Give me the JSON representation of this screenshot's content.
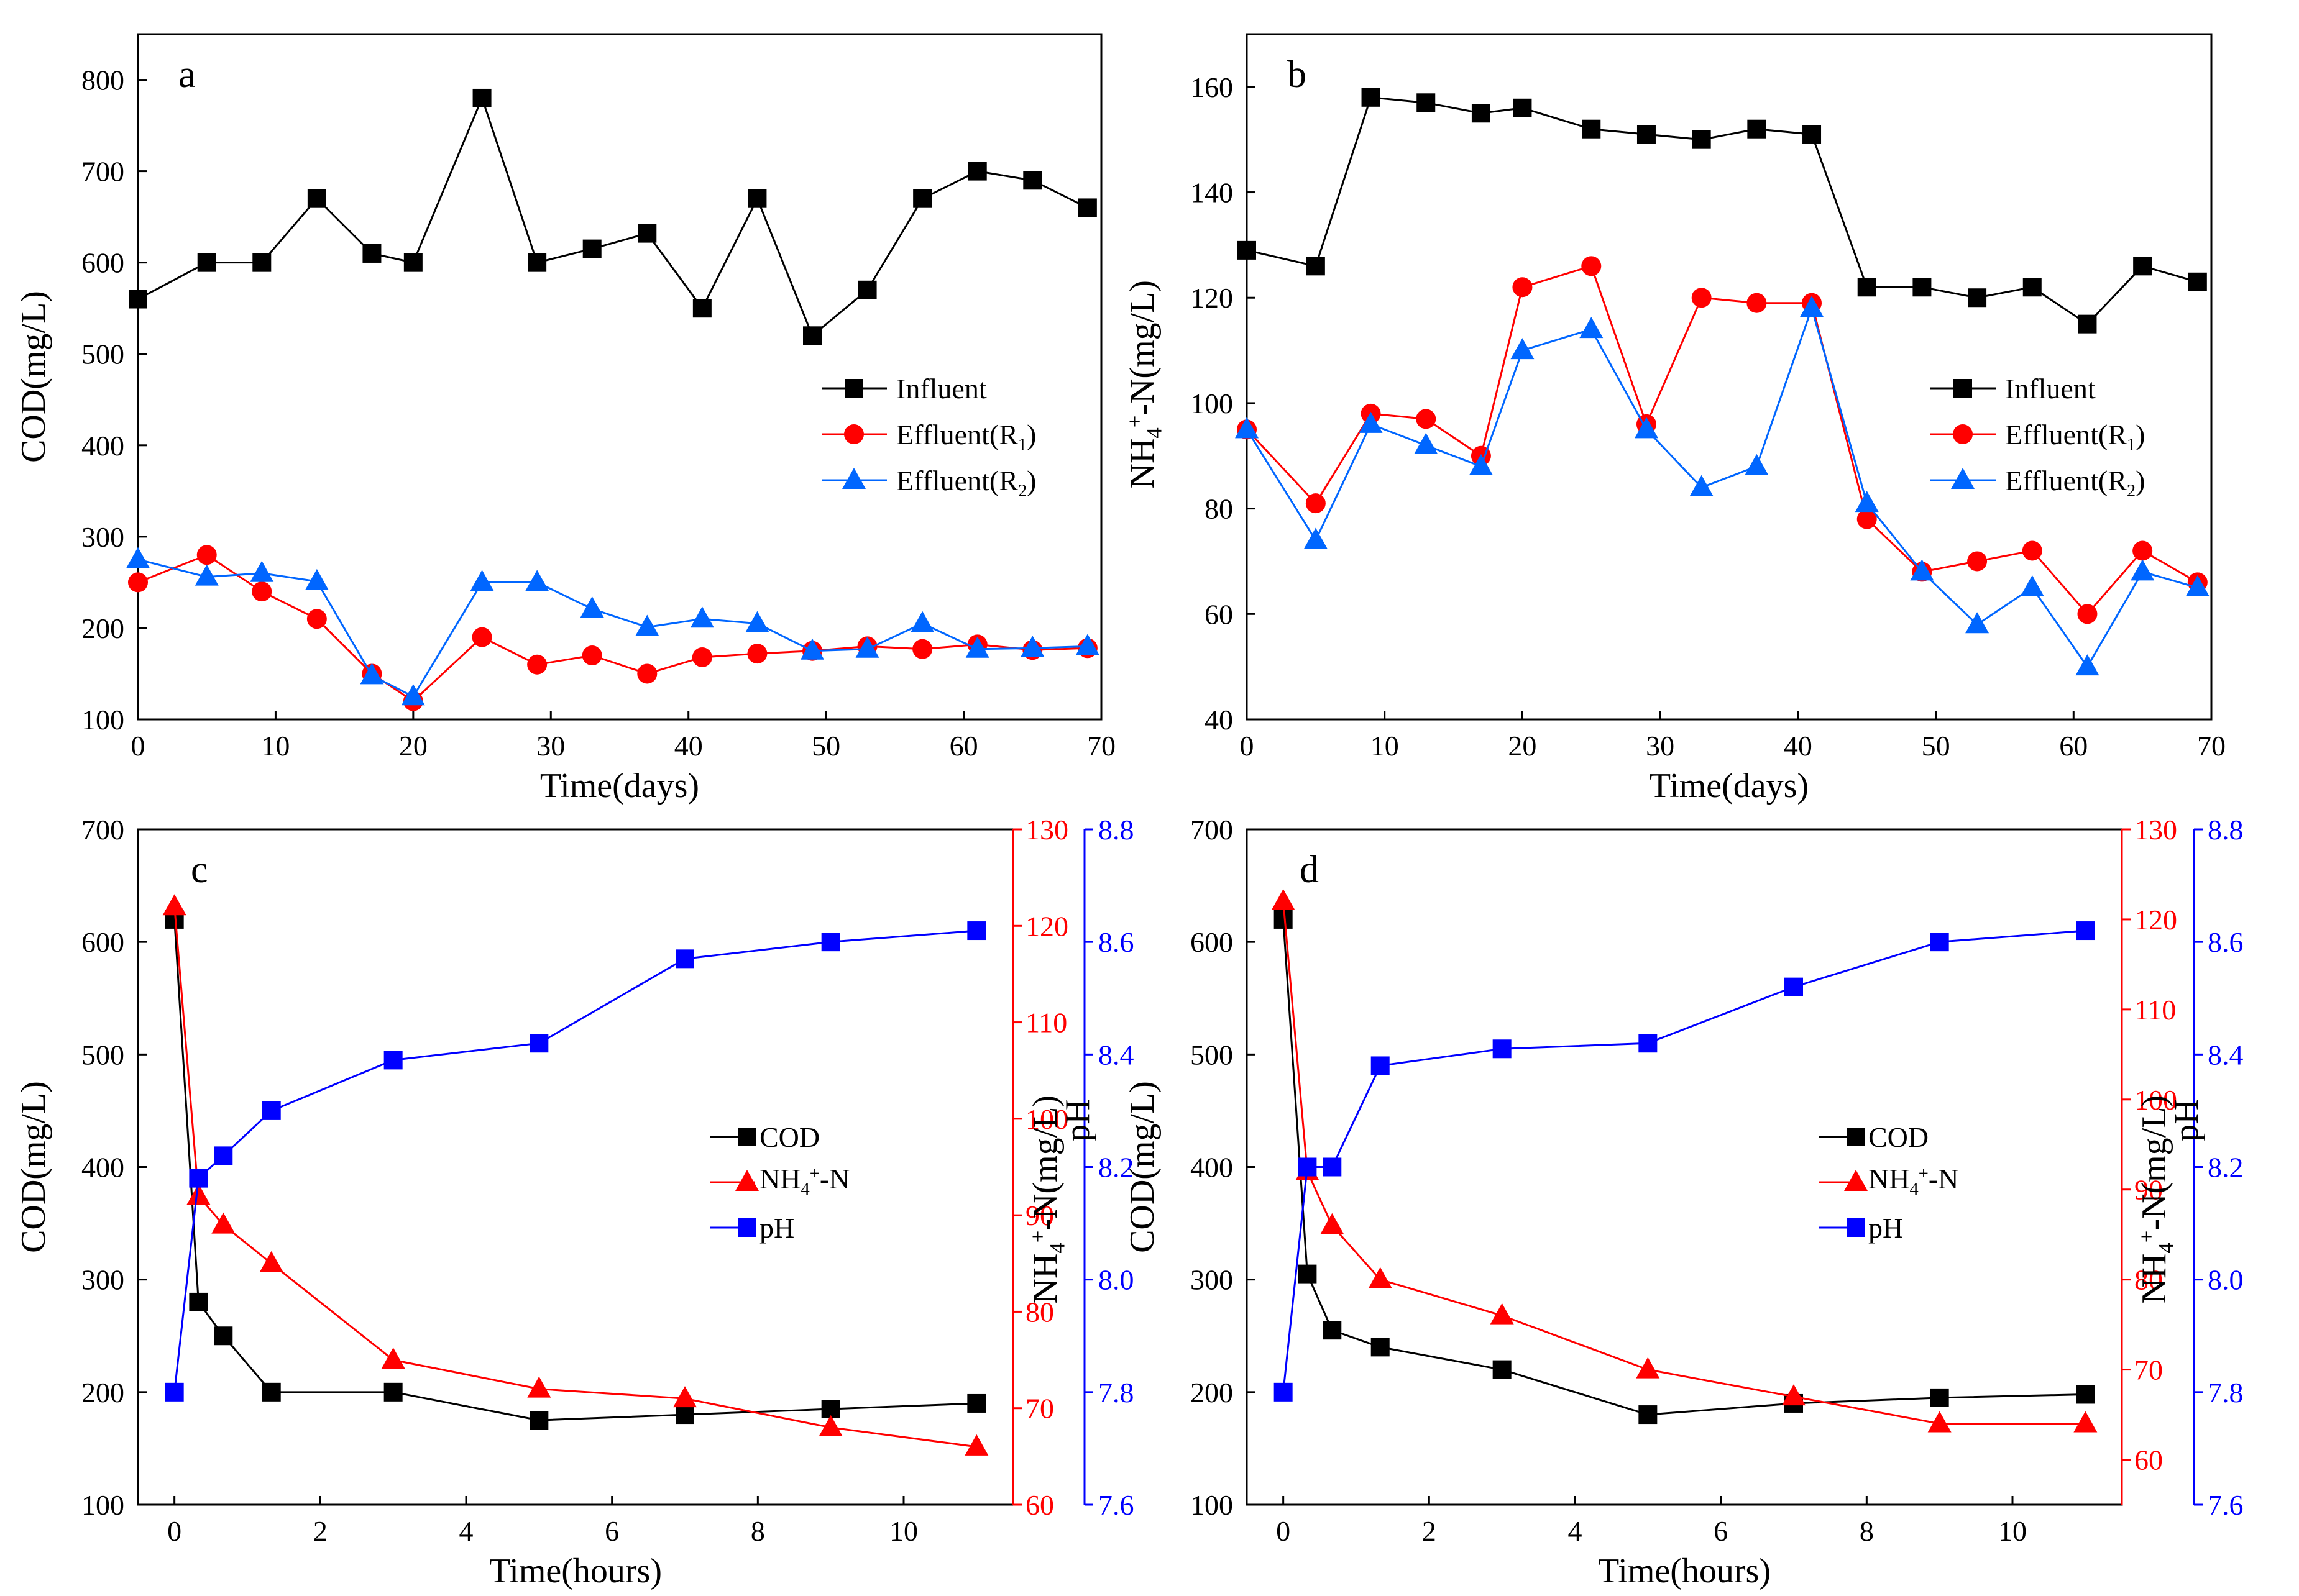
{
  "chart_data": [
    {
      "id": "a",
      "type": "line",
      "panel_label": "a",
      "xlabel": "Time(days)",
      "ylabel": "COD(mg/L)",
      "xlim": [
        0,
        70
      ],
      "ylim": [
        100,
        850
      ],
      "xticks": [
        0,
        10,
        20,
        30,
        40,
        50,
        60,
        70
      ],
      "yticks": [
        100,
        200,
        300,
        400,
        500,
        600,
        700,
        800
      ],
      "legend_position": "middle-right",
      "x": [
        0,
        5,
        9,
        13,
        17,
        20,
        25,
        29,
        33,
        37,
        41,
        45,
        49,
        53,
        57,
        61,
        65,
        69
      ],
      "series": [
        {
          "name": "Influent",
          "color": "#000000",
          "marker": "square",
          "values": [
            560,
            600,
            600,
            670,
            610,
            600,
            780,
            600,
            615,
            632,
            550,
            670,
            520,
            570,
            670,
            700,
            690,
            660
          ]
        },
        {
          "name": "Effluent(R1)",
          "name_base": "Effluent(R",
          "name_sub": "1",
          "name_tail": ")",
          "color": "#ff0000",
          "marker": "circle",
          "values": [
            250,
            280,
            240,
            210,
            150,
            120,
            190,
            160,
            170,
            150,
            168,
            172,
            175,
            180,
            177,
            182,
            176,
            178
          ]
        },
        {
          "name": "Effluent(R2)",
          "name_base": "Effluent(R",
          "name_sub": "2",
          "name_tail": ")",
          "color": "#0066ff",
          "marker": "triangle",
          "values": [
            275,
            256,
            260,
            251,
            148,
            125,
            250,
            250,
            221,
            201,
            210,
            205,
            175,
            177,
            205,
            177,
            178,
            180
          ]
        }
      ]
    },
    {
      "id": "b",
      "type": "line",
      "panel_label": "b",
      "xlabel": "Time(days)",
      "ylabel": "NH4+-N(mg/L)",
      "xlim": [
        0,
        70
      ],
      "ylim": [
        40,
        170
      ],
      "xticks": [
        0,
        10,
        20,
        30,
        40,
        50,
        60,
        70
      ],
      "yticks": [
        40,
        60,
        80,
        100,
        120,
        140,
        160
      ],
      "legend_position": "middle-right",
      "x": [
        0,
        5,
        9,
        13,
        17,
        20,
        25,
        29,
        33,
        37,
        41,
        45,
        49,
        53,
        57,
        61,
        65,
        69
      ],
      "series": [
        {
          "name": "Influent",
          "color": "#000000",
          "marker": "square",
          "values": [
            129,
            126,
            158,
            157,
            155,
            156,
            152,
            151,
            150,
            152,
            151,
            122,
            122,
            120,
            122,
            115,
            126,
            123
          ]
        },
        {
          "name": "Effluent(R1)",
          "name_base": "Effluent(R",
          "name_sub": "1",
          "name_tail": ")",
          "color": "#ff0000",
          "marker": "circle",
          "values": [
            95,
            81,
            98,
            97,
            90,
            122,
            126,
            96,
            120,
            119,
            119,
            78,
            68,
            70,
            72,
            60,
            72,
            66
          ]
        },
        {
          "name": "Effluent(R2)",
          "name_base": "Effluent(R",
          "name_sub": "2",
          "name_tail": ")",
          "color": "#0066ff",
          "marker": "triangle",
          "values": [
            95,
            74,
            96,
            92,
            88,
            110,
            114,
            95,
            84,
            88,
            118,
            81,
            68,
            58,
            65,
            50,
            68,
            65
          ]
        }
      ]
    },
    {
      "id": "c",
      "type": "line",
      "panel_label": "c",
      "xlabel": "Time(hours)",
      "ylabel_left": "COD(mg/L)",
      "ylabel_right1": "NH4+-N(mg/L)",
      "ylabel_right2": "pH",
      "xlim": [
        -0.5,
        11.5
      ],
      "xticks": [
        0,
        2,
        4,
        6,
        8,
        10
      ],
      "y_left": {
        "lim": [
          100,
          700
        ],
        "ticks": [
          100,
          200,
          300,
          400,
          500,
          600,
          700
        ]
      },
      "y_right1": {
        "lim": [
          60,
          130
        ],
        "ticks": [
          60,
          70,
          80,
          90,
          100,
          110,
          120,
          130
        ]
      },
      "y_right2": {
        "lim": [
          7.6,
          8.8
        ],
        "ticks": [
          "7.6",
          "7.8",
          "8.0",
          "8.2",
          "8.4",
          "8.6",
          "8.8"
        ]
      },
      "legend_position": "center-right",
      "x": [
        0,
        0.33,
        0.67,
        1.33,
        3,
        5,
        7,
        9,
        11
      ],
      "series": [
        {
          "name": "COD",
          "axis": "left",
          "color": "#000000",
          "marker": "square",
          "values": [
            620,
            280,
            250,
            200,
            200,
            175,
            180,
            185,
            190
          ]
        },
        {
          "name": "NH4+-N",
          "axis": "right1",
          "color": "#ff0000",
          "marker": "triangle",
          "values": [
            122,
            92,
            89,
            85,
            75,
            72,
            71,
            68,
            66
          ]
        },
        {
          "name": "pH",
          "axis": "right2",
          "color": "#0000ff",
          "marker": "square",
          "values": [
            7.8,
            8.18,
            8.22,
            8.3,
            8.39,
            8.42,
            8.57,
            8.6,
            8.62
          ]
        }
      ]
    },
    {
      "id": "d",
      "type": "line",
      "panel_label": "d",
      "xlabel": "Time(hours)",
      "ylabel_left": "COD(mg/L)",
      "ylabel_right1": "NH4+-N(mg/L)",
      "ylabel_right2": "pH",
      "xlim": [
        -0.5,
        11.5
      ],
      "xticks": [
        0,
        2,
        4,
        6,
        8,
        10
      ],
      "y_left": {
        "lim": [
          100,
          700
        ],
        "ticks": [
          100,
          200,
          300,
          400,
          500,
          600,
          700
        ]
      },
      "y_right1": {
        "lim": [
          55,
          130
        ],
        "ticks": [
          60,
          70,
          80,
          90,
          100,
          110,
          120,
          130
        ]
      },
      "y_right2": {
        "lim": [
          7.6,
          8.8
        ],
        "ticks": [
          "7.6",
          "7.8",
          "8.0",
          "8.2",
          "8.4",
          "8.6",
          "8.8"
        ]
      },
      "legend_position": "center-right",
      "x": [
        0,
        0.33,
        0.67,
        1.33,
        3,
        5,
        7,
        9,
        11
      ],
      "series": [
        {
          "name": "COD",
          "axis": "left",
          "color": "#000000",
          "marker": "square",
          "values": [
            620,
            305,
            255,
            240,
            220,
            180,
            190,
            195,
            198
          ]
        },
        {
          "name": "NH4+-N",
          "axis": "right1",
          "color": "#ff0000",
          "marker": "triangle",
          "values": [
            122,
            92,
            86,
            80,
            76,
            70,
            67,
            64,
            64
          ]
        },
        {
          "name": "pH",
          "axis": "right2",
          "color": "#0000ff",
          "marker": "square",
          "values": [
            7.8,
            8.2,
            8.2,
            8.38,
            8.41,
            8.42,
            8.52,
            8.6,
            8.62
          ]
        }
      ]
    }
  ]
}
